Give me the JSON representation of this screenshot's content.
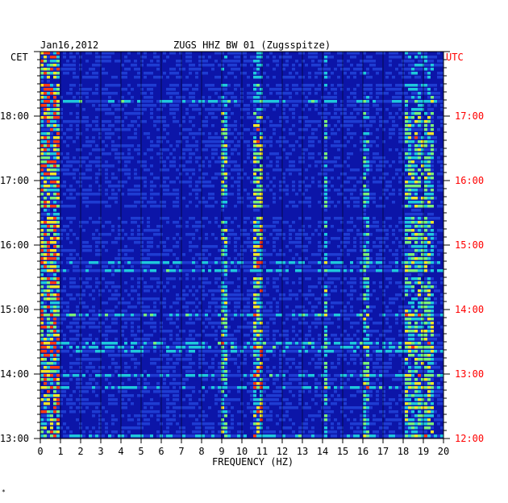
{
  "header": {
    "date": "Jan16,2012",
    "station": "ZUGS HHZ BW 01 (Zugsspitze)",
    "left_zone": "CET",
    "right_zone": "UTC"
  },
  "footer_mark": "*",
  "colors": {
    "left_zone": "#000000",
    "right_zone": "#ff0000",
    "background_spectrum": "#0c15a8",
    "grid": "#000000"
  },
  "chart_data": {
    "type": "heatmap",
    "title": "ZUGS HHZ BW 01 (Zugsspitze)",
    "xlabel": "FREQUENCY (HZ)",
    "ylabel": "",
    "xlim": [
      0,
      20
    ],
    "x_ticks": [
      "0",
      "1",
      "2",
      "3",
      "4",
      "5",
      "6",
      "7",
      "8",
      "9",
      "10",
      "11",
      "12",
      "13",
      "14",
      "15",
      "16",
      "17",
      "18",
      "19",
      "20"
    ],
    "y_left_ticks": [
      "13:00",
      "14:00",
      "15:00",
      "16:00",
      "17:00",
      "18:00"
    ],
    "y_right_ticks": [
      "12:00",
      "13:00",
      "14:00",
      "15:00",
      "16:00",
      "17:00"
    ],
    "colorscale": [
      "#0a0f8c",
      "#1e3cd2",
      "#1ec8dc",
      "#78f078",
      "#f0e628",
      "#ff3c14"
    ],
    "grid": true,
    "energy_bands": [
      {
        "from": 0.0,
        "to": 0.8,
        "intensity": 0.85
      },
      {
        "from": 8.9,
        "to": 9.2,
        "intensity": 0.55
      },
      {
        "from": 10.5,
        "to": 10.9,
        "intensity": 0.7
      },
      {
        "from": 14.0,
        "to": 14.2,
        "intensity": 0.45
      },
      {
        "from": 16.0,
        "to": 16.3,
        "intensity": 0.4
      },
      {
        "from": 18.0,
        "to": 19.4,
        "intensity": 0.55
      }
    ]
  }
}
